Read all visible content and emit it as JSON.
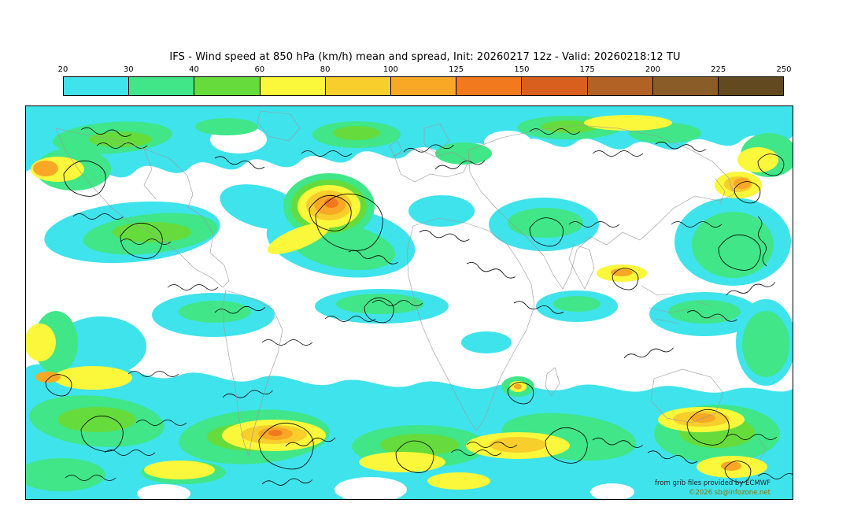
{
  "header": {
    "title": "IFS - Wind speed at 850 hPa (km/h) mean and spread, Init: 20260217 12z - Valid: 20260218:12 TU"
  },
  "colorbar": {
    "ticks": [
      "20",
      "30",
      "40",
      "60",
      "80",
      "100",
      "125",
      "150",
      "175",
      "200",
      "225",
      "250"
    ],
    "colors": [
      "#3fe3ec",
      "#40e687",
      "#66dc3c",
      "#fbf73b",
      "#f7ce2c",
      "#f8a825",
      "#f2791d",
      "#d95f1e",
      "#b26224",
      "#8a5d28",
      "#63491f"
    ]
  },
  "map": {
    "credit1": "from grib files provided by ECMWF",
    "credit2": "©2026 sb@infozone.net"
  },
  "palette": {
    "cyan": "#3fe3ec",
    "green": "#40e687",
    "green2": "#66dc3c",
    "yellow": "#fbf73b",
    "gold": "#f7ce2c",
    "orange": "#f8a825",
    "orange-deep": "#f2791d",
    "coast": "#999999",
    "contour": "#000000",
    "credit1": "#222222",
    "credit2": "#8b7500"
  }
}
